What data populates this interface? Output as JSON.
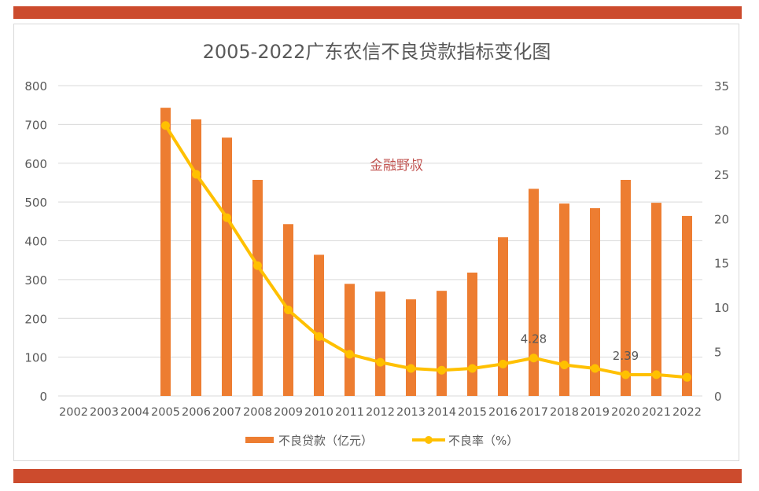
{
  "colors": {
    "band": "#cc4b2d",
    "bar": "#ed7d31",
    "line": "#ffc000",
    "watermark": "#c0504d"
  },
  "watermark": "金融野叔",
  "chart_data": {
    "type": "bar+line",
    "title": "2005-2022广东农信不良贷款指标变化图",
    "categories": [
      "2002",
      "2003",
      "2004",
      "2005",
      "2006",
      "2007",
      "2008",
      "2009",
      "2010",
      "2011",
      "2012",
      "2013",
      "2014",
      "2015",
      "2016",
      "2017",
      "2018",
      "2019",
      "2020",
      "2021",
      "2022"
    ],
    "y_left": {
      "range": [
        0,
        800
      ],
      "ticks": [
        "0",
        "100",
        "200",
        "300",
        "400",
        "500",
        "600",
        "700",
        "800"
      ]
    },
    "y_right": {
      "range": [
        0,
        35
      ],
      "ticks": [
        "0",
        "5",
        "10",
        "15",
        "20",
        "25",
        "30",
        "35"
      ]
    },
    "grid": true,
    "legend_position": "bottom",
    "series": [
      {
        "name": "不良贷款（亿元）",
        "type": "bar",
        "axis": "left",
        "values": [
          null,
          null,
          null,
          743,
          713,
          666,
          557,
          443,
          364,
          289,
          269,
          249,
          271,
          318,
          409,
          534,
          496,
          484,
          557,
          498,
          464
        ]
      },
      {
        "name": "不良率（%）",
        "type": "line",
        "axis": "right",
        "values": [
          null,
          null,
          null,
          30.5,
          25.0,
          20.1,
          14.7,
          9.7,
          6.7,
          4.7,
          3.8,
          3.1,
          2.9,
          3.1,
          3.6,
          4.28,
          3.5,
          3.1,
          2.39,
          2.4,
          2.1
        ]
      }
    ],
    "data_labels": [
      {
        "category": "2017",
        "text": "4.28"
      },
      {
        "category": "2020",
        "text": "2.39"
      }
    ]
  }
}
